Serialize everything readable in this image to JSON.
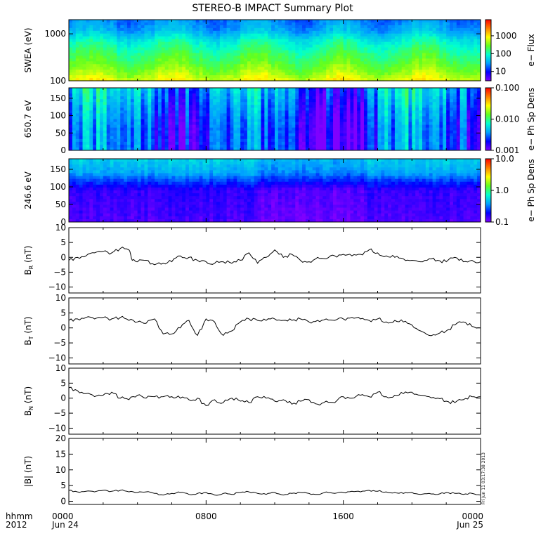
{
  "title": "STEREO-B IMPACT Summary Plot",
  "footer": {
    "left_line1": "hhmm",
    "left_line2": "2012",
    "date_start": "Jun 24",
    "date_end": "Jun 25",
    "stamp": "Fri Jun 11 03:17:38 2013"
  },
  "colormap": [
    "#7f00ff",
    "#0000ff",
    "#00a0ff",
    "#00ffd0",
    "#60ff20",
    "#ffff00",
    "#ff8000",
    "#ff0000"
  ],
  "x_axis": {
    "unit": "hhmm",
    "range_hours": [
      0,
      24
    ],
    "ticks": [
      {
        "hour": 0,
        "label": "0000"
      },
      {
        "hour": 8,
        "label": "0800"
      },
      {
        "hour": 16,
        "label": "1600"
      },
      {
        "hour": 24,
        "label": "0000"
      }
    ]
  },
  "chart_data": [
    {
      "type": "heatmap",
      "name": "swea",
      "ylabel": "SWEA (eV)",
      "yscale": "log",
      "ylim": [
        100,
        2000
      ],
      "yticks": [
        {
          "v": 1000,
          "label": "1000"
        },
        {
          "v": 100,
          "label": "100"
        }
      ],
      "colorbar": {
        "label": "e− Flux",
        "scale": "log",
        "range": [
          3,
          8000
        ],
        "ticks": [
          {
            "v": 1000,
            "label": "1000"
          },
          {
            "v": 100,
            "label": "100"
          },
          {
            "v": 10,
            "label": "10"
          }
        ]
      },
      "profile": {
        "y": [
          100,
          150,
          250,
          400,
          700,
          1200,
          2000
        ],
        "level": [
          0.7,
          0.62,
          0.55,
          0.5,
          0.42,
          0.3,
          0.26
        ]
      }
    },
    {
      "type": "heatmap",
      "name": "pad650",
      "ylabel": "650.7 eV",
      "ylim": [
        0,
        180
      ],
      "yticks": [
        {
          "v": 150,
          "label": "150"
        },
        {
          "v": 100,
          "label": "100"
        },
        {
          "v": 50,
          "label": "50"
        },
        {
          "v": 0,
          "label": "0"
        }
      ],
      "colorbar": {
        "label": "e− Ph Sp Dens",
        "scale": "log",
        "range": [
          0.001,
          0.1
        ],
        "ticks": [
          {
            "v": 0.1,
            "label": "0.100"
          },
          {
            "v": 0.01,
            "label": "0.010"
          },
          {
            "v": 0.001,
            "label": "0.001"
          }
        ]
      },
      "profile": {
        "y": [
          0,
          60,
          120,
          180
        ],
        "level": [
          0.2,
          0.2,
          0.25,
          0.32
        ]
      }
    },
    {
      "type": "heatmap",
      "name": "pad246",
      "ylabel": "246.6 eV",
      "ylim": [
        0,
        180
      ],
      "yticks": [
        {
          "v": 150,
          "label": "150"
        },
        {
          "v": 100,
          "label": "100"
        },
        {
          "v": 50,
          "label": "50"
        },
        {
          "v": 0,
          "label": "0"
        }
      ],
      "colorbar": {
        "label": "e− Ph Sp Dens",
        "scale": "log",
        "range": [
          0.1,
          10
        ],
        "ticks": [
          {
            "v": 10,
            "label": "10.0"
          },
          {
            "v": 1,
            "label": "1.0"
          },
          {
            "v": 0.1,
            "label": "0.1"
          }
        ]
      },
      "profile": {
        "y": [
          0,
          90,
          110,
          140,
          180
        ],
        "level": [
          0.06,
          0.09,
          0.17,
          0.3,
          0.36
        ]
      }
    },
    {
      "type": "line",
      "name": "br",
      "ylabel": "BR (nT)",
      "ylabel_main": "B",
      "ylabel_sub": "R",
      "ylabel_unit": " (nT)",
      "ylim": [
        -12,
        10
      ],
      "yticks": [
        {
          "v": 10,
          "label": "10"
        },
        {
          "v": 5,
          "label": "5"
        },
        {
          "v": 0,
          "label": "0"
        },
        {
          "v": -5,
          "label": "−5"
        },
        {
          "v": -10,
          "label": "−10"
        }
      ],
      "x": [
        0,
        0.5,
        1,
        1.5,
        2,
        2.5,
        3,
        3.5,
        3.7,
        4,
        4.5,
        5,
        5.5,
        6,
        6.5,
        7,
        7.5,
        8,
        8.5,
        9,
        9.5,
        10,
        10.5,
        11,
        11.5,
        12,
        12.5,
        13,
        13.5,
        14,
        14.5,
        15,
        15.5,
        16,
        16.5,
        17,
        17.5,
        18,
        18.5,
        19,
        19.5,
        20,
        20.5,
        21,
        21.5,
        22,
        22.5,
        23,
        23.5,
        24
      ],
      "y": [
        -1,
        0,
        0.5,
        1.5,
        2,
        1.5,
        3,
        2.5,
        -1,
        -1.5,
        -1,
        -2.5,
        -2,
        -1.5,
        0.5,
        0,
        -1,
        -1.5,
        -2,
        -1.5,
        -2,
        -1,
        1.5,
        -2,
        0,
        2.5,
        0,
        1,
        -1,
        -1.5,
        0,
        -0.5,
        0.5,
        1,
        0.5,
        1,
        2.5,
        1.5,
        0.5,
        0,
        -0.5,
        -1,
        -1.5,
        -0.5,
        -1,
        -1.5,
        0,
        -1.5,
        -1,
        -1.5
      ]
    },
    {
      "type": "line",
      "name": "bt",
      "ylabel": "BT (nT)",
      "ylabel_main": "B",
      "ylabel_sub": "T",
      "ylabel_unit": " (nT)",
      "ylim": [
        -12,
        10
      ],
      "yticks": [
        {
          "v": 10,
          "label": "10"
        },
        {
          "v": 5,
          "label": "5"
        },
        {
          "v": 0,
          "label": "0"
        },
        {
          "v": -5,
          "label": "−5"
        },
        {
          "v": -10,
          "label": "−10"
        }
      ],
      "x": [
        0,
        0.5,
        1,
        1.5,
        2,
        2.5,
        3,
        3.5,
        4,
        4.5,
        5,
        5.5,
        6,
        6.5,
        7,
        7.5,
        8,
        8.5,
        9,
        9.5,
        10,
        10.5,
        11,
        11.5,
        12,
        12.5,
        13,
        13.5,
        14,
        14.5,
        15,
        15.5,
        16,
        16.5,
        17,
        17.5,
        18,
        18.5,
        19,
        19.5,
        20,
        20.5,
        21,
        21.5,
        22,
        22.5,
        23,
        23.5,
        24
      ],
      "y": [
        2.5,
        3,
        3.5,
        3,
        3.5,
        3,
        3.5,
        2.5,
        2,
        1.5,
        3,
        -2,
        -2,
        0,
        2.5,
        -2.5,
        3,
        2,
        -2.5,
        -1,
        2,
        3,
        2.5,
        2.5,
        3,
        2.5,
        2.5,
        3,
        2,
        2.5,
        3,
        2.5,
        3,
        3.5,
        3,
        2.5,
        3,
        2,
        2.5,
        2,
        1,
        -1,
        -2.5,
        -2,
        -1,
        1,
        2,
        0.5,
        0
      ]
    },
    {
      "type": "line",
      "name": "bn",
      "ylabel": "BN (nT)",
      "ylabel_main": "B",
      "ylabel_sub": "N",
      "ylabel_unit": " (nT)",
      "ylim": [
        -12,
        10
      ],
      "yticks": [
        {
          "v": 10,
          "label": "10"
        },
        {
          "v": 5,
          "label": "5"
        },
        {
          "v": 0,
          "label": "0"
        },
        {
          "v": -5,
          "label": "−5"
        },
        {
          "v": -10,
          "label": "−10"
        }
      ],
      "x": [
        0,
        0.5,
        1,
        1.5,
        2,
        2.5,
        3,
        3.5,
        4,
        4.5,
        5,
        5.5,
        6,
        6.5,
        7,
        7.5,
        8,
        8.5,
        9,
        9.5,
        10,
        10.5,
        11,
        11.5,
        12,
        12.5,
        13,
        13.5,
        14,
        14.5,
        15,
        15.5,
        16,
        16.5,
        17,
        17.5,
        18,
        18.5,
        19,
        19.5,
        20,
        20.5,
        21,
        21.5,
        22,
        22.5,
        23,
        23.5,
        24
      ],
      "y": [
        3.5,
        2.5,
        1.5,
        0.5,
        1,
        2,
        0,
        -0.5,
        1,
        0,
        0.5,
        0.5,
        0.5,
        0,
        -0.5,
        0,
        -2.5,
        -0.5,
        -1.5,
        0,
        -1,
        -1.5,
        0.5,
        0,
        -1,
        -0.5,
        -2,
        -1,
        -0.5,
        -2,
        -1,
        -1.5,
        0.5,
        0,
        1,
        0.5,
        2,
        0.5,
        1,
        1.5,
        2,
        1,
        0.5,
        0,
        -1,
        -1.5,
        -0.5,
        0.5,
        0.5
      ]
    },
    {
      "type": "line",
      "name": "btot",
      "ylabel": "|B| (nT)",
      "ylabel_main": "|B|",
      "ylabel_sub": "",
      "ylabel_unit": " (nT)",
      "ylim": [
        -1,
        20
      ],
      "yticks": [
        {
          "v": 20,
          "label": "20"
        },
        {
          "v": 15,
          "label": "15"
        },
        {
          "v": 10,
          "label": "10"
        },
        {
          "v": 5,
          "label": "5"
        },
        {
          "v": 0,
          "label": "0"
        }
      ],
      "x": [
        0,
        0.5,
        1,
        1.5,
        2,
        2.5,
        3,
        3.5,
        4,
        4.5,
        5,
        5.5,
        6,
        6.5,
        7,
        7.5,
        8,
        8.5,
        9,
        9.5,
        10,
        10.5,
        11,
        11.5,
        12,
        12.5,
        13,
        13.5,
        14,
        14.5,
        15,
        15.5,
        16,
        16.5,
        17,
        17.5,
        18,
        18.5,
        19,
        19.5,
        20,
        20.5,
        21,
        21.5,
        22,
        22.5,
        23,
        23.5,
        24
      ],
      "y": [
        3.5,
        3,
        3.2,
        3,
        3.5,
        3.2,
        3.5,
        3,
        2.8,
        3,
        2.5,
        2,
        2.5,
        2.8,
        2.2,
        2.5,
        2.8,
        2,
        2.5,
        2.2,
        2.8,
        3,
        2.5,
        2.2,
        2.8,
        2,
        2.5,
        2.8,
        2.5,
        2.2,
        3,
        2.5,
        2.8,
        3.2,
        3,
        3.5,
        3.2,
        3,
        2.8,
        2.5,
        2.8,
        2.2,
        2.5,
        2.2,
        2.8,
        2.5,
        2.2,
        2.5,
        2
      ]
    }
  ]
}
